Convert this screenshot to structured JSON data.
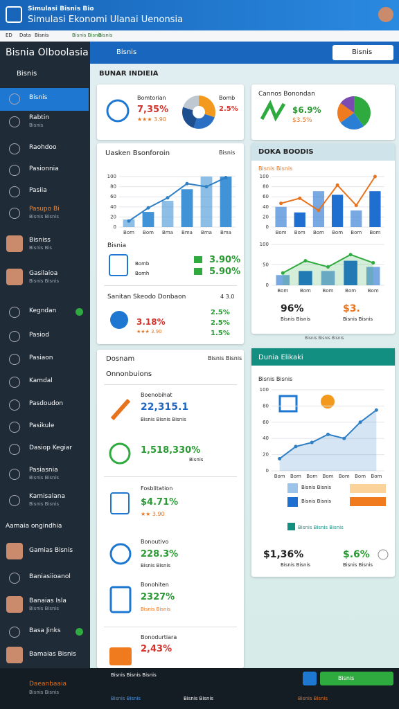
{
  "header": {
    "kicker": "Simulasi Bisnis Bio",
    "title": "Simulasi Ekonomi Ulanai Uenonsia"
  },
  "toolbar": [
    "ED",
    "Data",
    "Bisnis",
    "Bisnis Bisnis",
    "Bisnis"
  ],
  "sidebar": {
    "title": "Bisnia Olboolasia",
    "section": "Bisnis",
    "items": [
      {
        "label": "Bisnis"
      },
      {
        "label": "Rabtin",
        "sub": "Bisnis"
      },
      {
        "label": "Raohdoo"
      },
      {
        "label": "Pasionnia"
      },
      {
        "label": "Pasiia"
      },
      {
        "label": "Pasupo Bi",
        "sub": "Bisnis Bisnis"
      },
      {
        "label": "Bisniss",
        "sub": "Bisnis Bis"
      },
      {
        "label": "Gasilaioa",
        "sub": "Bisnis Bisnis"
      },
      {
        "label": "Kegndan"
      },
      {
        "label": "Pasiod"
      },
      {
        "label": "Pasiaon"
      },
      {
        "label": "Kamdal"
      },
      {
        "label": "Pasdoudon"
      },
      {
        "label": "Pasikule"
      },
      {
        "label": "Dasiop Kegiar"
      },
      {
        "label": "Pasiasnia",
        "sub": "Bisnis Bisnis"
      },
      {
        "label": "Kamisalana",
        "sub": "Bisnis Bisnis"
      },
      {
        "label": "Gamias Bisnis"
      },
      {
        "label": "Baniasiioanol"
      },
      {
        "label": "Banaias Isla",
        "sub": "Bisnis Bisnis"
      },
      {
        "label": "Basa Jinks"
      },
      {
        "label": "Bamaias Bisnis"
      }
    ],
    "group": "Aamaia ongindhia",
    "footer": "Daeanbaaia",
    "footer_sub": "Bisnis Bisnis"
  },
  "topbar": {
    "menu": "Bisnis",
    "button": "Bisnis"
  },
  "panel_title": "BUNAR INDIEIA",
  "summary": {
    "label": "Bomtorian",
    "value": "7,35%",
    "rating": "★★★ 3.90",
    "side_label": "Bomb",
    "side_value": "2.5%"
  },
  "cannos": {
    "title": "Cannos Bonondan",
    "value": "$6.9%",
    "sub": "$3.5%"
  },
  "growth": {
    "title": "Uasken Bsonforoin",
    "action": "Bisnis",
    "section": "Bisnia",
    "rows": [
      {
        "label": "Bomb",
        "value": "3.90%"
      },
      {
        "label": "Bomh",
        "value": "5.90%"
      }
    ],
    "sub_title": "Sanitan Skeodo Donbaon",
    "sub_action": "4 3.0",
    "sub_value": "3.18%",
    "sub_rating": "★★★ 3.90",
    "side": [
      "2.5%",
      "2.5%",
      "1.5%"
    ]
  },
  "doka": {
    "title": "DOKA BOODIS",
    "chart_title": "Bisnis Bisnis",
    "left_value": "96%",
    "left_sub": "Bisnis Bisnis",
    "right_value": "$3.",
    "right_sub": "Bisnis Bisnis",
    "note": "Bisnis Bisnis Bisnis"
  },
  "dosnam": {
    "title": "Dosnam",
    "action": "Bisnis Bisnis",
    "subtitle": "Onnonbuions",
    "items": [
      {
        "label": "Boenobihat",
        "value": "22,315.1",
        "sub": "Bisnis Bisnis Bisnis"
      },
      {
        "value": "1,518,330%",
        "sub": "Bisnis"
      },
      {
        "label": "Fosblitation",
        "value": "$4.71%",
        "sub": "★★ 3.90"
      },
      {
        "label": "Bonoutivo",
        "value": "228.3%",
        "sub": "Bisnis Bisnis"
      },
      {
        "label": "Bonohiten",
        "value": "2327%",
        "sub": "Bisnis Bisnis"
      },
      {
        "label": "Bonodurtiara",
        "value": "2,43%"
      }
    ]
  },
  "dunia": {
    "title": "Dunia Elikaki",
    "chart_title": "Bisnis Bisnis",
    "legend": [
      "Bisnis Bisnis",
      "Bisnis Bisnis"
    ],
    "row": "Bisnis Bisnis Bisnis",
    "left_value": "$1,36%",
    "left_sub": "Bisnis Bisnis",
    "right_value": "$.6%",
    "right_sub": "Bisnis Bisnis"
  },
  "bottombar": {
    "info": "Bisnis Bisnis Bisnis",
    "button": "Bisnis",
    "links": [
      "Bisnis Bisnis",
      "Bisnis Bisnis",
      "Bisnis Bisnis"
    ]
  },
  "charts": {
    "c1": {
      "ylim": [
        0,
        100
      ],
      "yticks": [
        0,
        20,
        40,
        60,
        80,
        100
      ],
      "categories": [
        "Bom",
        "Bom",
        "Bma",
        "Bma",
        "Bma",
        "Bma"
      ],
      "bars": [
        15,
        30,
        52,
        75,
        100,
        100
      ],
      "line": [
        12,
        38,
        58,
        86,
        80,
        98
      ],
      "bar_color": "#3f93d6",
      "line_color": "#2f7fc4"
    },
    "c2": {
      "ylim": [
        0,
        100
      ],
      "yticks": [
        0,
        20,
        40,
        60,
        80,
        100
      ],
      "categories": [
        "Bom",
        "Bom",
        "Bom",
        "Bom",
        "Bom",
        "Bom"
      ],
      "bars": [
        40,
        29,
        71,
        64,
        33,
        71
      ],
      "line": [
        47,
        57,
        33,
        83,
        43,
        100
      ],
      "bar_color": "#1f6fd0",
      "line_color": "#e8731e"
    },
    "c3": {
      "ylim": [
        0,
        100
      ],
      "yticks": [
        0,
        50,
        100
      ],
      "categories": [
        "Bom",
        "Bom",
        "Bom",
        "Bom",
        "Bom"
      ],
      "bars": [
        25,
        35,
        35,
        60,
        45
      ],
      "line": [
        30,
        60,
        45,
        75,
        55
      ],
      "bar_color": "#1f6fd0",
      "line_color": "#2faa3f",
      "area": true
    },
    "c4": {
      "ylim": [
        0,
        100
      ],
      "yticks": [
        0,
        20,
        40,
        60,
        80,
        100
      ],
      "categories": [
        "Bom",
        "Bom",
        "Bom",
        "Bom",
        "Bom",
        "Bom",
        "Bom"
      ],
      "line": [
        15,
        30,
        35,
        45,
        40,
        60,
        75
      ],
      "line_color": "#2f7fc4",
      "area": true
    }
  },
  "pies": {
    "p1": {
      "values": [
        30,
        25,
        25,
        20
      ],
      "colors": [
        "#f39a1e",
        "#2a6fc4",
        "#1d4f8f",
        "#bfc7d0"
      ]
    },
    "p2": {
      "values": [
        40,
        25,
        20,
        15
      ],
      "colors": [
        "#2faa3f",
        "#2a7fd4",
        "#f07a1e",
        "#7a4bb0"
      ]
    }
  }
}
